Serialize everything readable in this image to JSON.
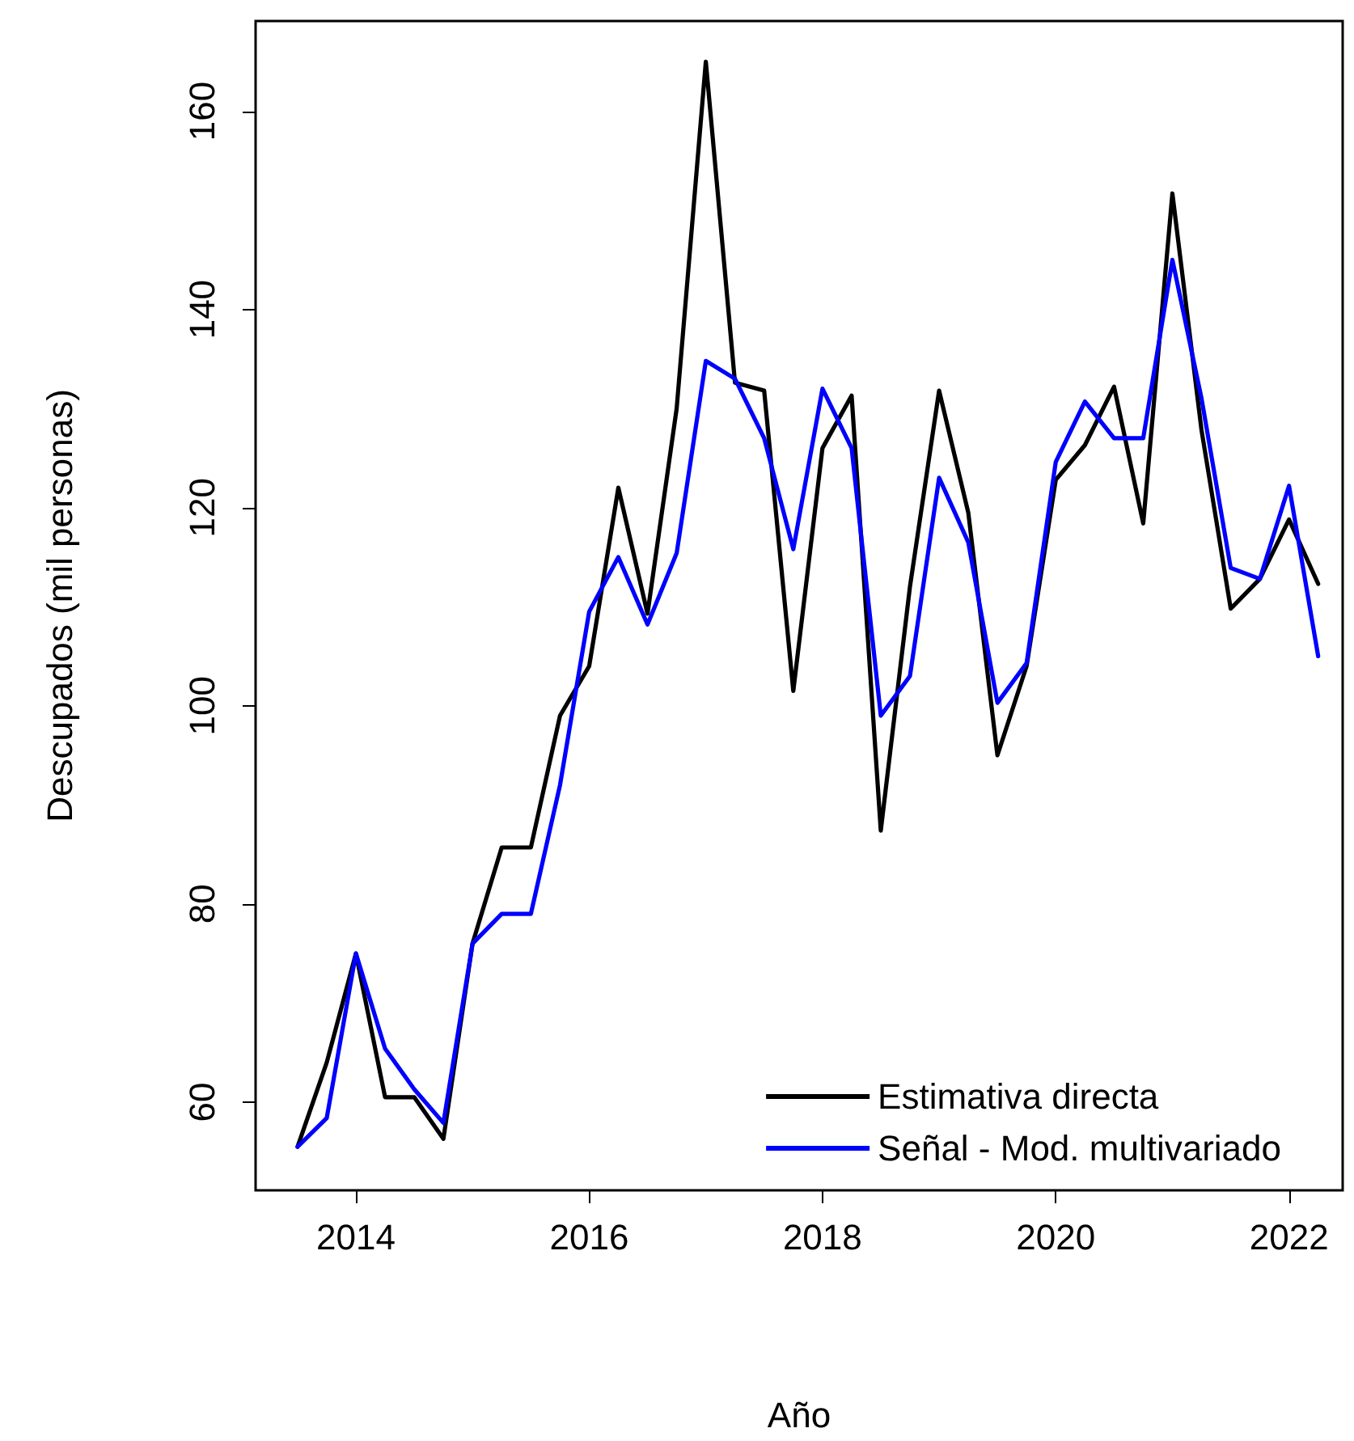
{
  "chart_data": {
    "type": "line",
    "xlabel": "Año",
    "ylabel": "Descupados (mil personas)",
    "x": [
      2013.5,
      2013.75,
      2014,
      2014.25,
      2014.5,
      2014.75,
      2015,
      2015.25,
      2015.5,
      2015.75,
      2016,
      2016.25,
      2016.5,
      2016.75,
      2017,
      2017.25,
      2017.5,
      2017.75,
      2018,
      2018.25,
      2018.5,
      2018.75,
      2019,
      2019.25,
      2019.5,
      2019.75,
      2020,
      2020.25,
      2020.5,
      2020.75,
      2021,
      2021.25,
      2021.5,
      2021.75,
      2022,
      2022.25
    ],
    "series": [
      {
        "name": "Estimativa directa",
        "color": "#000000",
        "values": [
          55.5,
          64,
          75,
          60.5,
          60.5,
          56.3,
          76,
          85.7,
          85.7,
          99,
          104,
          122,
          109.3,
          130,
          165,
          132.6,
          131.8,
          101.5,
          126,
          131.3,
          87.4,
          112,
          131.8,
          119.5,
          95,
          104,
          122.8,
          126.3,
          132.2,
          118.4,
          151.7,
          127.8,
          109.8,
          112.8,
          118.8,
          112.3
        ]
      },
      {
        "name": "Señal - Mod. multivariado",
        "color": "#0000ff",
        "values": [
          55.5,
          58.4,
          75,
          65.4,
          61.3,
          57.9,
          76,
          79,
          79,
          92,
          109.5,
          115,
          108.2,
          115.4,
          134.8,
          133,
          127,
          115.8,
          132,
          126,
          99,
          103,
          123,
          116.5,
          100.3,
          104.3,
          124.6,
          130.7,
          127,
          127,
          145,
          131,
          113.9,
          112.8,
          122.2,
          105
        ]
      }
    ],
    "xlim": [
      2013.14,
      2022.46
    ],
    "xticks": [
      2014,
      2016,
      2018,
      2020,
      2022
    ],
    "ylim": [
      51.1,
      169.1
    ],
    "yticks": [
      60,
      80,
      100,
      120,
      140,
      160
    ],
    "grid": false,
    "legend": "bottom right",
    "marker": "none",
    "line_style": "solid"
  }
}
